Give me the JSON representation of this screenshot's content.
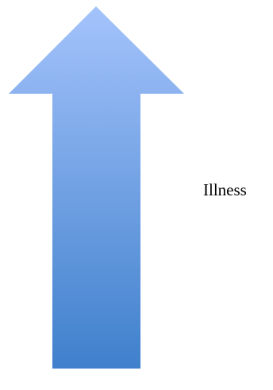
{
  "diagram": {
    "label": "Illness",
    "arrow": {
      "direction": "up",
      "shape": "block-arrow-icon",
      "gradient_top": "#a4c3fb",
      "gradient_bottom": "#3f80cc"
    }
  }
}
